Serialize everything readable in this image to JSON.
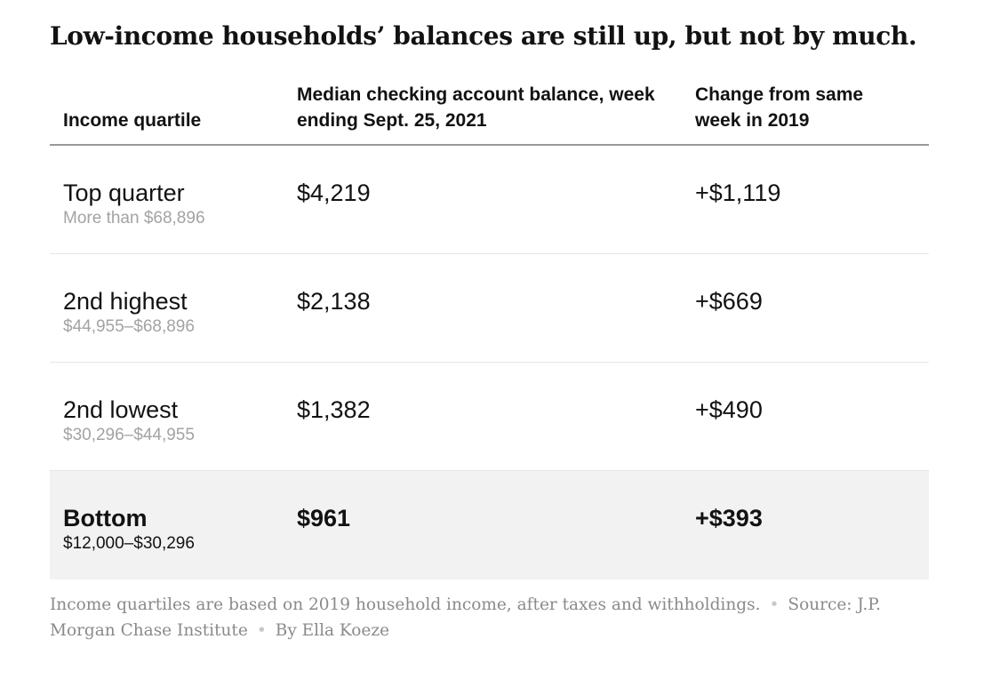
{
  "title": "Low-income households’ balances are still up, but not by much.",
  "chart_data": {
    "type": "table",
    "columns": [
      "Income quartile",
      "Median checking account balance, week ending Sept. 25, 2021",
      "Change from same week in 2019"
    ],
    "rows": [
      {
        "quartile": "Top quarter",
        "range": "More than $68,896",
        "balance": "$4,219",
        "change": "+$1,119",
        "highlight": false
      },
      {
        "quartile": "2nd highest",
        "range": "$44,955–$68,896",
        "balance": "$2,138",
        "change": "+$669",
        "highlight": false
      },
      {
        "quartile": "2nd lowest",
        "range": "$30,296–$44,955",
        "balance": "$1,382",
        "change": "+$490",
        "highlight": false
      },
      {
        "quartile": "Bottom",
        "range": "$12,000–$30,296",
        "balance": "$961",
        "change": "+$393",
        "highlight": true
      }
    ]
  },
  "footer": {
    "note": "Income quartiles are based on 2019 household income, after taxes and withholdings.",
    "source": "Source: J.P. Morgan Chase Institute",
    "byline": "By Ella Koeze"
  }
}
